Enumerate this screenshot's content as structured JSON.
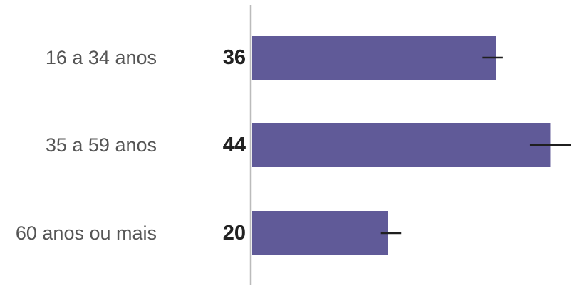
{
  "chart_data": {
    "type": "bar",
    "orientation": "horizontal",
    "categories": [
      "16 a 34 anos",
      "35 a 59 anos",
      "60 anos ou mais"
    ],
    "values": [
      36,
      44,
      20
    ],
    "value_labels": [
      "36",
      "44",
      "20"
    ],
    "error_bars": [
      {
        "low": 34,
        "high": 37
      },
      {
        "low": 41,
        "high": 47
      },
      {
        "low": 19,
        "high": 22
      }
    ],
    "xlim": [
      0,
      47
    ],
    "title": "",
    "xlabel": "",
    "ylabel": "",
    "grid": false,
    "legend": "none",
    "colors": {
      "bar": "#605a98",
      "axis": "#bbbbbb",
      "error_bar": "#1f1f1f"
    }
  }
}
